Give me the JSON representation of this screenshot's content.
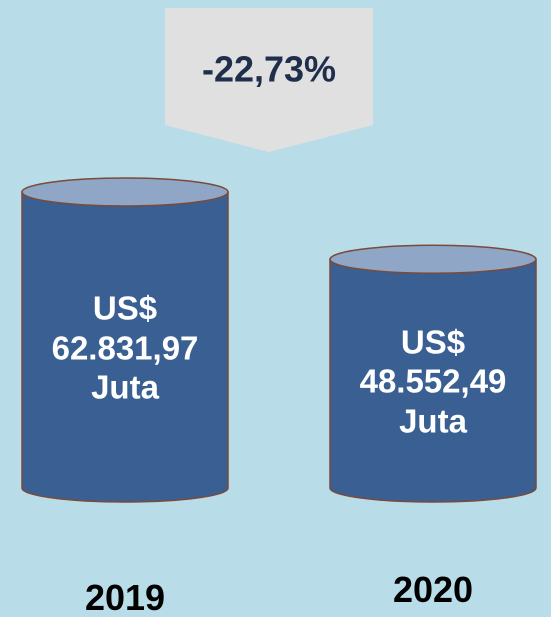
{
  "chart_data": {
    "type": "bar",
    "categories": [
      "2019",
      "2020"
    ],
    "values": [
      62831.97,
      48552.49
    ],
    "value_labels": [
      "US$ 62.831,97 Juta",
      "US$ 48.552,49 Juta"
    ],
    "color": "#3a5f93",
    "annotation": "-22,73%"
  }
}
